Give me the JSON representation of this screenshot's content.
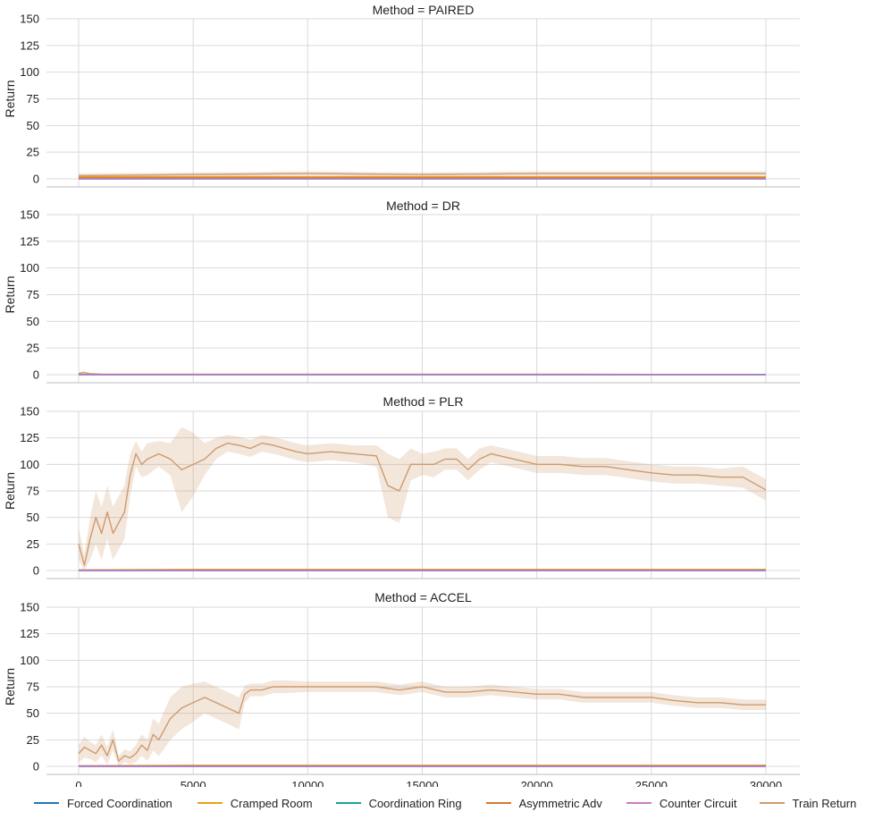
{
  "chart_data": {
    "type": "line",
    "x_label": "",
    "y_label": "Return",
    "xlim": [
      0,
      30000
    ],
    "ylim": [
      0,
      150
    ],
    "x_ticks": [
      "0",
      "5000",
      "10000",
      "15000",
      "20000",
      "25000",
      "30000"
    ],
    "y_ticks": [
      "0",
      "25",
      "50",
      "75",
      "100",
      "125",
      "150"
    ],
    "grid": true,
    "legend_position": "bottom",
    "series_styles": [
      {
        "name": "Forced Coordination",
        "color": "#1f77b4"
      },
      {
        "name": "Cramped Room",
        "color": "#e6a11b"
      },
      {
        "name": "Coordination Ring",
        "color": "#1aa39a"
      },
      {
        "name": "Asymmetric Adv",
        "color": "#d9782d"
      },
      {
        "name": "Counter Circuit",
        "color": "#cc79c9"
      },
      {
        "name": "Train Return",
        "color": "#cf9a6e"
      }
    ],
    "panels": [
      {
        "title": "Method = PAIRED",
        "series": [
          {
            "name": "Train Return",
            "x": [
              0,
              5000,
              10000,
              15000,
              20000,
              25000,
              30000
            ],
            "y": [
              3,
              4,
              5,
              4,
              5,
              5,
              5
            ],
            "band": [
              2,
              2,
              2,
              2,
              2,
              2,
              2
            ]
          },
          {
            "name": "Cramped Room",
            "x": [
              0,
              5000,
              10000,
              15000,
              20000,
              25000,
              30000
            ],
            "y": [
              2,
              2,
              2,
              2,
              2,
              2,
              2
            ]
          },
          {
            "name": "Asymmetric Adv",
            "x": [
              0,
              5000,
              10000,
              15000,
              20000,
              25000,
              30000
            ],
            "y": [
              1,
              1,
              1,
              1,
              1,
              1,
              1
            ]
          },
          {
            "name": "Forced Coordination",
            "x": [
              0,
              30000
            ],
            "y": [
              0,
              0
            ]
          },
          {
            "name": "Coordination Ring",
            "x": [
              0,
              30000
            ],
            "y": [
              0,
              0
            ]
          },
          {
            "name": "Counter Circuit",
            "x": [
              0,
              30000
            ],
            "y": [
              0,
              0
            ]
          }
        ]
      },
      {
        "title": "Method = DR",
        "series": [
          {
            "name": "Train Return",
            "x": [
              0,
              200,
              500,
              1000,
              5000,
              10000,
              15000,
              20000,
              25000,
              30000
            ],
            "y": [
              1,
              2,
              1,
              0.5,
              0.5,
              0.5,
              0.5,
              0.5,
              0.3,
              0.3
            ],
            "band": [
              1,
              1,
              0.5,
              0.3,
              0.3,
              0.3,
              0.3,
              0.3,
              0.2,
              0.2
            ]
          },
          {
            "name": "Cramped Room",
            "x": [
              0,
              30000
            ],
            "y": [
              0.3,
              0.3
            ]
          },
          {
            "name": "Asymmetric Adv",
            "x": [
              0,
              30000
            ],
            "y": [
              0.3,
              0.3
            ]
          },
          {
            "name": "Forced Coordination",
            "x": [
              0,
              30000
            ],
            "y": [
              0,
              0
            ]
          },
          {
            "name": "Coordination Ring",
            "x": [
              0,
              30000
            ],
            "y": [
              0,
              0
            ]
          },
          {
            "name": "Counter Circuit",
            "x": [
              0,
              30000
            ],
            "y": [
              0,
              0
            ]
          }
        ]
      },
      {
        "title": "Method = PLR",
        "series": [
          {
            "name": "Train Return",
            "x": [
              0,
              250,
              500,
              750,
              1000,
              1250,
              1500,
              1750,
              2000,
              2250,
              2500,
              2750,
              3000,
              3500,
              4000,
              4500,
              5000,
              5500,
              6000,
              6500,
              7000,
              7500,
              8000,
              8500,
              9000,
              9500,
              10000,
              11000,
              12000,
              13000,
              13500,
              14000,
              14500,
              15000,
              15500,
              16000,
              16500,
              17000,
              17500,
              18000,
              19000,
              20000,
              21000,
              22000,
              23000,
              24000,
              25000,
              26000,
              27000,
              28000,
              29000,
              30000
            ],
            "y": [
              25,
              5,
              30,
              50,
              35,
              55,
              35,
              45,
              55,
              90,
              110,
              100,
              105,
              110,
              105,
              95,
              100,
              105,
              115,
              120,
              118,
              115,
              120,
              118,
              115,
              112,
              110,
              112,
              110,
              108,
              80,
              75,
              100,
              100,
              100,
              105,
              105,
              95,
              105,
              110,
              105,
              100,
              100,
              98,
              98,
              95,
              92,
              90,
              90,
              88,
              88,
              76
            ],
            "band": [
              15,
              10,
              20,
              25,
              25,
              25,
              25,
              25,
              25,
              20,
              12,
              12,
              15,
              12,
              15,
              40,
              30,
              15,
              10,
              8,
              8,
              8,
              8,
              8,
              8,
              8,
              8,
              8,
              8,
              10,
              30,
              30,
              15,
              10,
              12,
              10,
              10,
              10,
              10,
              8,
              8,
              8,
              8,
              8,
              8,
              8,
              8,
              8,
              8,
              8,
              10,
              10
            ]
          },
          {
            "name": "Cramped Room",
            "x": [
              0,
              5000,
              10000,
              15000,
              20000,
              25000,
              30000
            ],
            "y": [
              0.5,
              1,
              1,
              1,
              1,
              1,
              1
            ]
          },
          {
            "name": "Asymmetric Adv",
            "x": [
              0,
              5000,
              10000,
              15000,
              20000,
              25000,
              30000
            ],
            "y": [
              0.5,
              0.5,
              0.5,
              0.5,
              0.5,
              0.5,
              0.5
            ]
          },
          {
            "name": "Forced Coordination",
            "x": [
              0,
              30000
            ],
            "y": [
              0,
              0
            ]
          },
          {
            "name": "Coordination Ring",
            "x": [
              0,
              30000
            ],
            "y": [
              0,
              0
            ]
          },
          {
            "name": "Counter Circuit",
            "x": [
              0,
              30000
            ],
            "y": [
              0,
              0
            ]
          }
        ]
      },
      {
        "title": "Method = ACCEL",
        "series": [
          {
            "name": "Train Return",
            "x": [
              0,
              250,
              500,
              750,
              1000,
              1250,
              1500,
              1750,
              2000,
              2250,
              2500,
              2750,
              3000,
              3250,
              3500,
              3750,
              4000,
              4500,
              5000,
              5500,
              6000,
              6500,
              7000,
              7250,
              7500,
              8000,
              8500,
              9000,
              10000,
              11000,
              12000,
              13000,
              14000,
              15000,
              16000,
              17000,
              18000,
              19000,
              20000,
              21000,
              22000,
              23000,
              24000,
              25000,
              26000,
              27000,
              28000,
              29000,
              30000
            ],
            "y": [
              12,
              18,
              15,
              12,
              20,
              10,
              25,
              5,
              10,
              8,
              12,
              20,
              15,
              30,
              25,
              35,
              45,
              55,
              60,
              65,
              60,
              55,
              50,
              68,
              72,
              72,
              75,
              75,
              75,
              75,
              75,
              75,
              72,
              75,
              70,
              70,
              72,
              70,
              68,
              68,
              65,
              65,
              65,
              65,
              62,
              60,
              60,
              58,
              58
            ],
            "band": [
              8,
              10,
              8,
              8,
              10,
              8,
              10,
              5,
              6,
              6,
              8,
              10,
              10,
              15,
              15,
              18,
              20,
              20,
              18,
              15,
              15,
              15,
              15,
              8,
              6,
              6,
              6,
              6,
              5,
              5,
              5,
              5,
              5,
              5,
              5,
              5,
              5,
              5,
              5,
              5,
              5,
              5,
              5,
              5,
              5,
              5,
              5,
              5,
              5
            ]
          },
          {
            "name": "Cramped Room",
            "x": [
              0,
              5000,
              10000,
              15000,
              20000,
              25000,
              30000
            ],
            "y": [
              0.5,
              1,
              1,
              1,
              1,
              1,
              1
            ]
          },
          {
            "name": "Asymmetric Adv",
            "x": [
              0,
              5000,
              10000,
              15000,
              20000,
              25000,
              30000
            ],
            "y": [
              0.5,
              0.5,
              0.5,
              0.5,
              0.5,
              0.5,
              0.5
            ]
          },
          {
            "name": "Forced Coordination",
            "x": [
              0,
              30000
            ],
            "y": [
              0,
              0
            ]
          },
          {
            "name": "Coordination Ring",
            "x": [
              0,
              30000
            ],
            "y": [
              0,
              0
            ]
          },
          {
            "name": "Counter Circuit",
            "x": [
              0,
              30000
            ],
            "y": [
              0,
              0
            ]
          }
        ]
      }
    ]
  },
  "legend": {
    "items": [
      "Forced Coordination",
      "Cramped Room",
      "Coordination Ring",
      "Asymmetric Adv",
      "Counter Circuit",
      "Train Return"
    ]
  }
}
